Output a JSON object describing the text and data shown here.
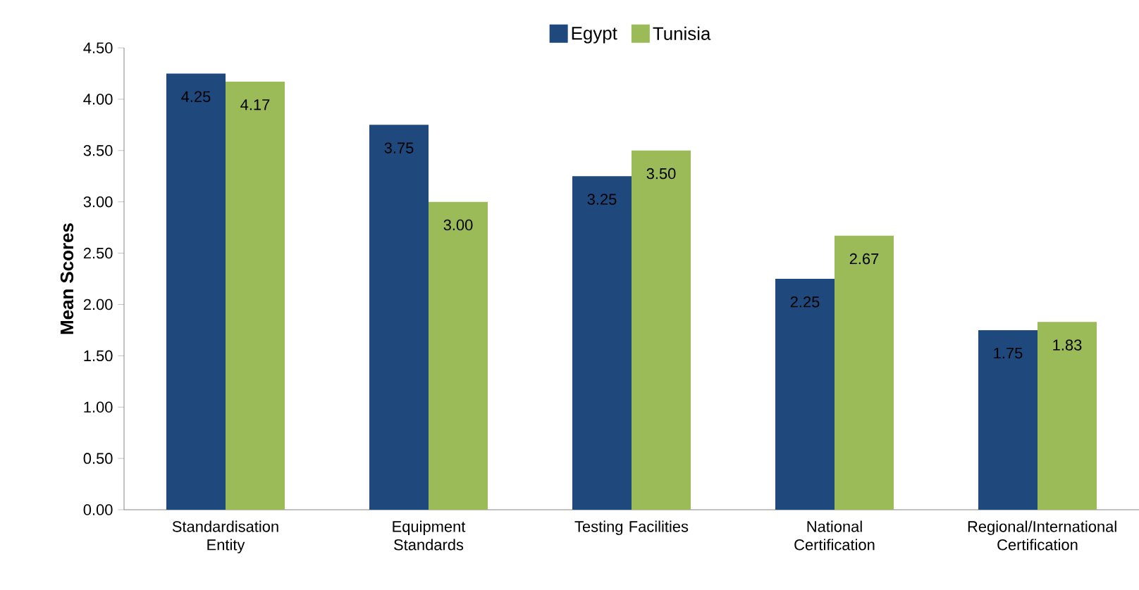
{
  "chart_data": {
    "type": "bar",
    "ylabel": "Mean Scores",
    "categories": [
      "Standardisation Entity",
      "Equipment Standards",
      "Testing Facilities",
      "National Certification",
      "Regional/International Certification"
    ],
    "series": [
      {
        "name": "Egypt",
        "color": "#1f497d",
        "values": [
          4.25,
          3.75,
          3.25,
          2.25,
          1.75
        ],
        "value_labels": [
          "4.25",
          "3.75",
          "3.25",
          "2.25",
          "1.75"
        ]
      },
      {
        "name": "Tunisia",
        "color": "#9bbb59",
        "values": [
          4.17,
          3.0,
          3.5,
          2.67,
          1.83
        ],
        "value_labels": [
          "4.17",
          "3.00",
          "3.50",
          "2.67",
          "1.83"
        ]
      }
    ],
    "ylim": [
      0,
      4.5
    ],
    "yticks": [
      {
        "value": 0,
        "label": "0.00"
      },
      {
        "value": 0.5,
        "label": "0.50"
      },
      {
        "value": 1,
        "label": "1.00"
      },
      {
        "value": 1.5,
        "label": "1.50"
      },
      {
        "value": 2,
        "label": "2.00"
      },
      {
        "value": 2.5,
        "label": "2.50"
      },
      {
        "value": 3,
        "label": "3.00"
      },
      {
        "value": 3.5,
        "label": "3.50"
      },
      {
        "value": 4,
        "label": "4.00"
      },
      {
        "value": 4.5,
        "label": "4.50"
      }
    ],
    "legend": "top",
    "grid": false
  }
}
